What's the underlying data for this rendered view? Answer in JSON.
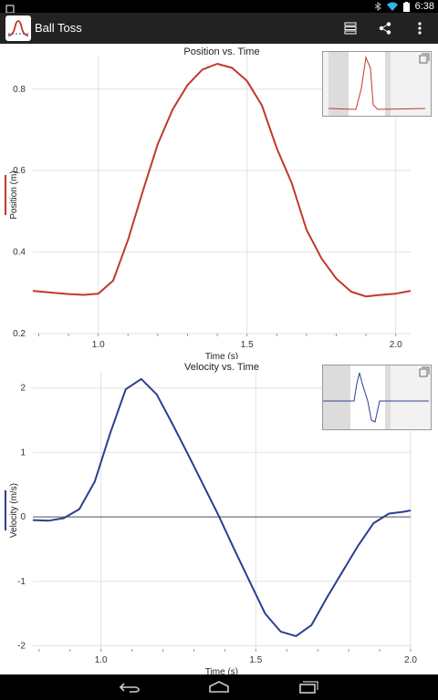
{
  "status_bar": {
    "time": "6:38"
  },
  "app": {
    "title": "Ball Toss"
  },
  "colors": {
    "position": "#c0392b",
    "velocity": "#2c3e91",
    "actionbar": "#222222"
  },
  "icons": {
    "menu": "list-icon",
    "share": "share-icon",
    "overflow": "overflow-icon"
  },
  "chart_data": [
    {
      "type": "line",
      "title": "Position vs. Time",
      "xlabel": "Time (s)",
      "ylabel": "Position (m)",
      "xlim": [
        0.78,
        2.05
      ],
      "ylim": [
        0.2,
        0.88
      ],
      "xticks": [
        "1.0",
        "1.5",
        "2.0"
      ],
      "xtick_values": [
        1.0,
        1.5,
        2.0
      ],
      "yticks": [
        "0.2",
        "0.4",
        "0.6",
        "0.8"
      ],
      "ytick_values": [
        0.2,
        0.4,
        0.6,
        0.8
      ],
      "series": [
        {
          "x": [
            0.78,
            0.85,
            0.9,
            0.95,
            1.0,
            1.05,
            1.1,
            1.15,
            1.2,
            1.25,
            1.3,
            1.35,
            1.4,
            1.45,
            1.5,
            1.55,
            1.6,
            1.65,
            1.7,
            1.75,
            1.8,
            1.85,
            1.9,
            1.95,
            2.0,
            2.05
          ],
          "y": [
            0.305,
            0.3,
            0.297,
            0.295,
            0.298,
            0.33,
            0.43,
            0.55,
            0.665,
            0.75,
            0.81,
            0.848,
            0.862,
            0.852,
            0.82,
            0.76,
            0.655,
            0.57,
            0.455,
            0.385,
            0.335,
            0.303,
            0.291,
            0.295,
            0.298,
            0.305
          ]
        }
      ],
      "grid": true
    },
    {
      "type": "line",
      "title": "Velocity vs. Time",
      "xlabel": "Time (s)",
      "ylabel": "Velocity (m/s)",
      "xlim": [
        0.78,
        2.0
      ],
      "ylim": [
        -2.05,
        2.25
      ],
      "xticks": [
        "1.0",
        "1.5",
        "2.0"
      ],
      "xtick_values": [
        1.0,
        1.5,
        2.0
      ],
      "yticks": [
        "-2",
        "-1",
        "0",
        "1",
        "2"
      ],
      "ytick_values": [
        -2,
        -1,
        0,
        1,
        2
      ],
      "series": [
        {
          "x": [
            0.78,
            0.83,
            0.88,
            0.93,
            0.98,
            1.03,
            1.08,
            1.13,
            1.18,
            1.23,
            1.28,
            1.33,
            1.38,
            1.43,
            1.48,
            1.53,
            1.58,
            1.63,
            1.68,
            1.73,
            1.78,
            1.83,
            1.88,
            1.93,
            1.98,
            2.0
          ],
          "y": [
            -0.05,
            -0.06,
            -0.02,
            0.12,
            0.55,
            1.3,
            1.98,
            2.14,
            1.9,
            1.45,
            0.98,
            0.5,
            0.02,
            -0.5,
            -1.0,
            -1.5,
            -1.78,
            -1.85,
            -1.68,
            -1.25,
            -0.85,
            -0.45,
            -0.1,
            0.05,
            0.08,
            0.1
          ]
        }
      ],
      "zero_line": true,
      "grid": true
    }
  ]
}
